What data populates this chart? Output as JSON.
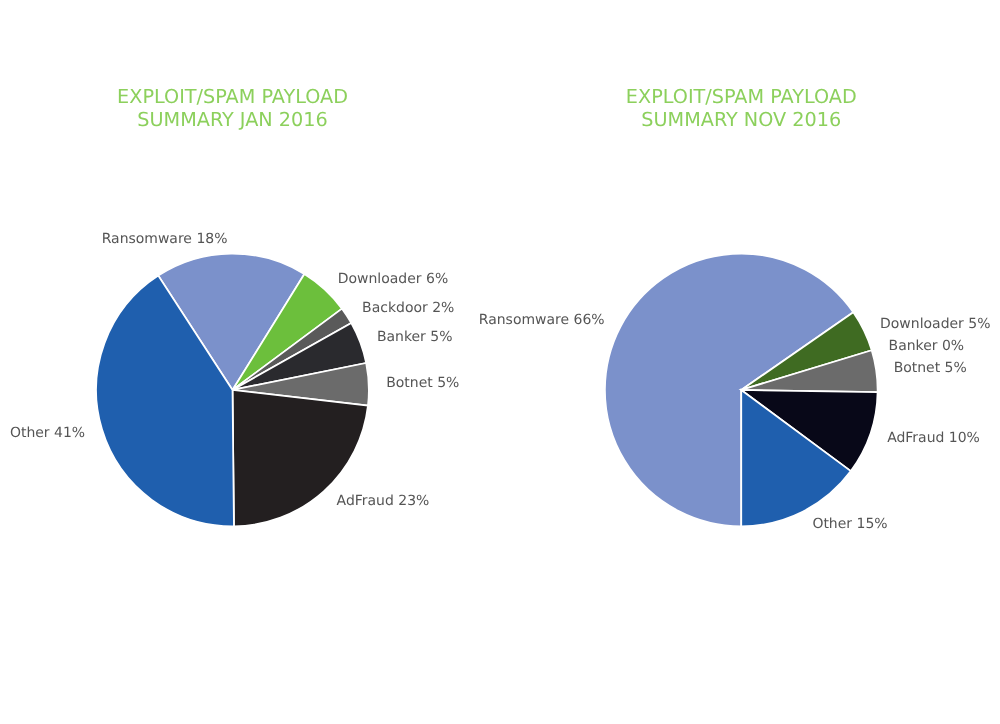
{
  "chart_data": [
    {
      "type": "pie",
      "title": [
        "EXPLOIT/SPAM PAYLOAD",
        "SUMMARY JAN 2016"
      ],
      "categories": [
        "Ransomware",
        "Downloader",
        "Backdoor",
        "Banker",
        "Botnet",
        "AdFraud",
        "Other"
      ],
      "values": [
        18,
        6,
        2,
        5,
        5,
        23,
        41
      ],
      "colors": [
        "#7b91cb",
        "#6cbf3c",
        "#5a5a5a",
        "#2a2a2e",
        "#6b6b6b",
        "#231f20",
        "#1f5fae"
      ],
      "value_labels": [
        "18%",
        "6%",
        "2%",
        "5%",
        "5%",
        "23%",
        "41%"
      ]
    },
    {
      "type": "pie",
      "title": [
        "EXPLOIT/SPAM PAYLOAD",
        "SUMMARY NOV 2016"
      ],
      "categories": [
        "Ransomware",
        "Downloader",
        "Banker",
        "Botnet",
        "AdFraud",
        "Other"
      ],
      "values": [
        66,
        5,
        0,
        5,
        10,
        15
      ],
      "colors": [
        "#7b91cb",
        "#3f6b22",
        "#2a2a2e",
        "#6b6b6b",
        "#080818",
        "#1f5fae"
      ],
      "value_labels": [
        "66%",
        "5%",
        "0%",
        "5%",
        "10%",
        "15%"
      ]
    }
  ]
}
